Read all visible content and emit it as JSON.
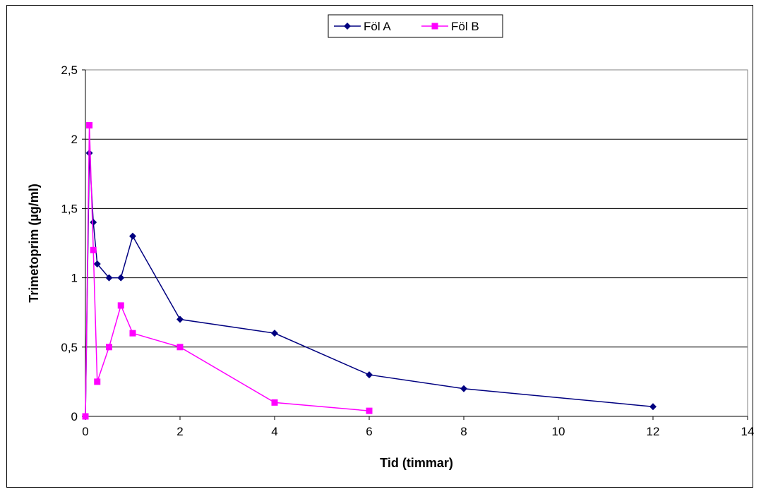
{
  "chart_data": {
    "type": "line",
    "title": "",
    "xlabel": "Tid (timmar)",
    "ylabel": "Trimetoprim (µg/ml)",
    "xlim": [
      0,
      14
    ],
    "ylim": [
      0,
      2.5
    ],
    "x_ticks": [
      0,
      2,
      4,
      6,
      8,
      10,
      12,
      14
    ],
    "x_tick_labels": [
      "0",
      "2",
      "4",
      "6",
      "8",
      "10",
      "12",
      "14"
    ],
    "y_ticks": [
      0,
      0.5,
      1,
      1.5,
      2,
      2.5
    ],
    "y_tick_labels": [
      "0",
      "0,5",
      "1",
      "1,5",
      "2",
      "2,5"
    ],
    "grid": "horizontal",
    "legend_position": "top",
    "series": [
      {
        "name": "Föl A",
        "color": "#000080",
        "marker": "diamond",
        "x": [
          0,
          0.083,
          0.167,
          0.25,
          0.5,
          0.75,
          1,
          2,
          4,
          6,
          8,
          12
        ],
        "y": [
          0,
          1.9,
          1.4,
          1.1,
          1.0,
          1.0,
          1.3,
          0.7,
          0.6,
          0.3,
          0.2,
          0.07
        ]
      },
      {
        "name": "Föl B",
        "color": "#FF00FF",
        "marker": "square",
        "x": [
          0,
          0.083,
          0.167,
          0.25,
          0.5,
          0.75,
          1,
          2,
          4,
          6
        ],
        "y": [
          0,
          2.1,
          1.2,
          0.25,
          0.5,
          0.8,
          0.6,
          0.5,
          0.1,
          0.04
        ]
      }
    ]
  }
}
